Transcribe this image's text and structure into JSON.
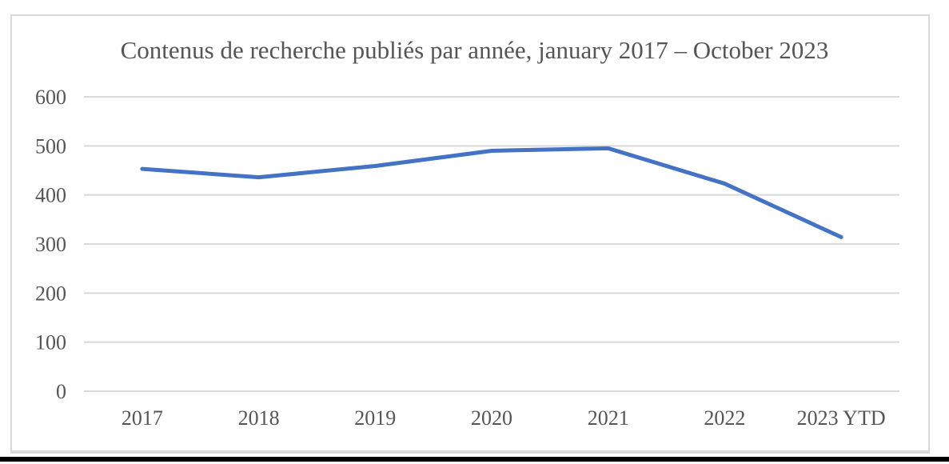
{
  "colors": {
    "line": "#4472c4",
    "gridline": "#d9d9d9",
    "text": "#555555",
    "frame_border": "#d9d9d9",
    "bottom_bar": "#000000"
  },
  "chart_data": {
    "type": "line",
    "title": "Contenus de recherche publiés par année, january 2017 – October 2023",
    "categories": [
      "2017",
      "2018",
      "2019",
      "2020",
      "2021",
      "2022",
      "2023 YTD"
    ],
    "values": [
      453,
      436,
      459,
      490,
      495,
      423,
      314
    ],
    "xlabel": "",
    "ylabel": "",
    "ylim": [
      0,
      600
    ],
    "yticks": [
      0,
      100,
      200,
      300,
      400,
      500,
      600
    ],
    "grid": "horizontal",
    "legend": "none",
    "line_color": "#4472c4"
  }
}
